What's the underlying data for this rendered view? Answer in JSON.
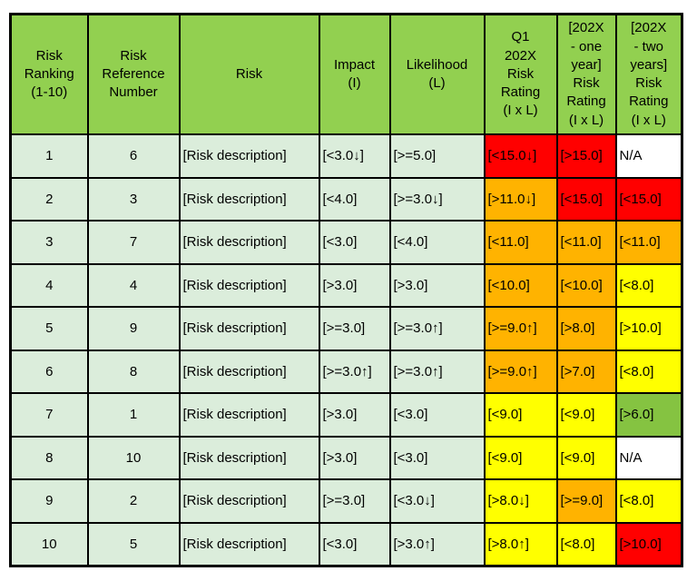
{
  "colors": {
    "header_bg": "#92D050",
    "row_bg": "#DBEDDB",
    "red": "#FF0000",
    "orange": "#FFB300",
    "yellow": "#FFFF00",
    "green": "#85C341",
    "white": "#FFFFFF",
    "border": "#000000"
  },
  "table": {
    "headers": [
      "Risk\nRanking\n(1-10)",
      "Risk\nReference\nNumber",
      "Risk",
      "Impact\n(I)",
      "Likelihood\n(L)",
      "Q1\n202X\nRisk\nRating\n(I x L)",
      "[202X\n- one\nyear]\nRisk\nRating\n(I x L)",
      "[202X\n- two\nyears]\nRisk\nRating\n(I x L)"
    ],
    "rows": [
      {
        "cells": [
          {
            "text": "1"
          },
          {
            "text": "6"
          },
          {
            "text": "[Risk description]"
          },
          {
            "text": "[<3.0↓]"
          },
          {
            "text": "[>=5.0]"
          },
          {
            "text": "[<15.0↓]",
            "bg": "red"
          },
          {
            "text": "[>15.0]",
            "bg": "red"
          },
          {
            "text": "N/A",
            "bg": "white"
          }
        ]
      },
      {
        "cells": [
          {
            "text": "2"
          },
          {
            "text": "3"
          },
          {
            "text": "[Risk description]"
          },
          {
            "text": "[<4.0]"
          },
          {
            "text": "[>=3.0↓]"
          },
          {
            "text": "[>11.0↓]",
            "bg": "orange"
          },
          {
            "text": "[<15.0]",
            "bg": "red"
          },
          {
            "text": "[<15.0]",
            "bg": "red"
          }
        ]
      },
      {
        "cells": [
          {
            "text": "3"
          },
          {
            "text": "7"
          },
          {
            "text": "[Risk description]"
          },
          {
            "text": "[<3.0]"
          },
          {
            "text": "[<4.0]"
          },
          {
            "text": "[<11.0]",
            "bg": "orange"
          },
          {
            "text": "[<11.0]",
            "bg": "orange"
          },
          {
            "text": "[<11.0]",
            "bg": "orange"
          }
        ]
      },
      {
        "cells": [
          {
            "text": "4"
          },
          {
            "text": "4"
          },
          {
            "text": "[Risk description]"
          },
          {
            "text": "[>3.0]"
          },
          {
            "text": "[>3.0]"
          },
          {
            "text": "[<10.0]",
            "bg": "orange"
          },
          {
            "text": "[<10.0]",
            "bg": "orange"
          },
          {
            "text": "[<8.0]",
            "bg": "yellow"
          }
        ]
      },
      {
        "cells": [
          {
            "text": "5"
          },
          {
            "text": "9"
          },
          {
            "text": "[Risk description]"
          },
          {
            "text": "[>=3.0]"
          },
          {
            "text": "[>=3.0↑]"
          },
          {
            "text": "[>=9.0↑]",
            "bg": "orange"
          },
          {
            "text": "[>8.0]",
            "bg": "orange"
          },
          {
            "text": "[>10.0]",
            "bg": "yellow"
          }
        ]
      },
      {
        "cells": [
          {
            "text": "6"
          },
          {
            "text": "8"
          },
          {
            "text": "[Risk description]"
          },
          {
            "text": "[>=3.0↑]"
          },
          {
            "text": "[>=3.0↑]"
          },
          {
            "text": "[>=9.0↑]",
            "bg": "orange"
          },
          {
            "text": "[>7.0]",
            "bg": "orange"
          },
          {
            "text": "[<8.0]",
            "bg": "yellow"
          }
        ]
      },
      {
        "cells": [
          {
            "text": "7"
          },
          {
            "text": "1"
          },
          {
            "text": "[Risk description]"
          },
          {
            "text": "[>3.0]"
          },
          {
            "text": "[<3.0]"
          },
          {
            "text": "[<9.0]",
            "bg": "yellow"
          },
          {
            "text": "[<9.0]",
            "bg": "yellow"
          },
          {
            "text": "[>6.0]",
            "bg": "green"
          }
        ]
      },
      {
        "cells": [
          {
            "text": "8"
          },
          {
            "text": "10"
          },
          {
            "text": "[Risk description]"
          },
          {
            "text": "[>3.0]"
          },
          {
            "text": "[<3.0]"
          },
          {
            "text": "[<9.0]",
            "bg": "yellow"
          },
          {
            "text": "[<9.0]",
            "bg": "yellow"
          },
          {
            "text": "N/A",
            "bg": "white"
          }
        ]
      },
      {
        "cells": [
          {
            "text": "9"
          },
          {
            "text": "2"
          },
          {
            "text": "[Risk description]"
          },
          {
            "text": "[>=3.0]"
          },
          {
            "text": "[<3.0↓]"
          },
          {
            "text": "[>8.0↓]",
            "bg": "yellow"
          },
          {
            "text": "[>=9.0]",
            "bg": "orange"
          },
          {
            "text": "[<8.0]",
            "bg": "yellow"
          }
        ]
      },
      {
        "cells": [
          {
            "text": "10"
          },
          {
            "text": "5"
          },
          {
            "text": "[Risk description]"
          },
          {
            "text": "[<3.0]"
          },
          {
            "text": "[>3.0↑]"
          },
          {
            "text": "[>8.0↑]",
            "bg": "yellow"
          },
          {
            "text": "[<8.0]",
            "bg": "yellow"
          },
          {
            "text": "[>10.0]",
            "bg": "red"
          }
        ]
      }
    ]
  }
}
